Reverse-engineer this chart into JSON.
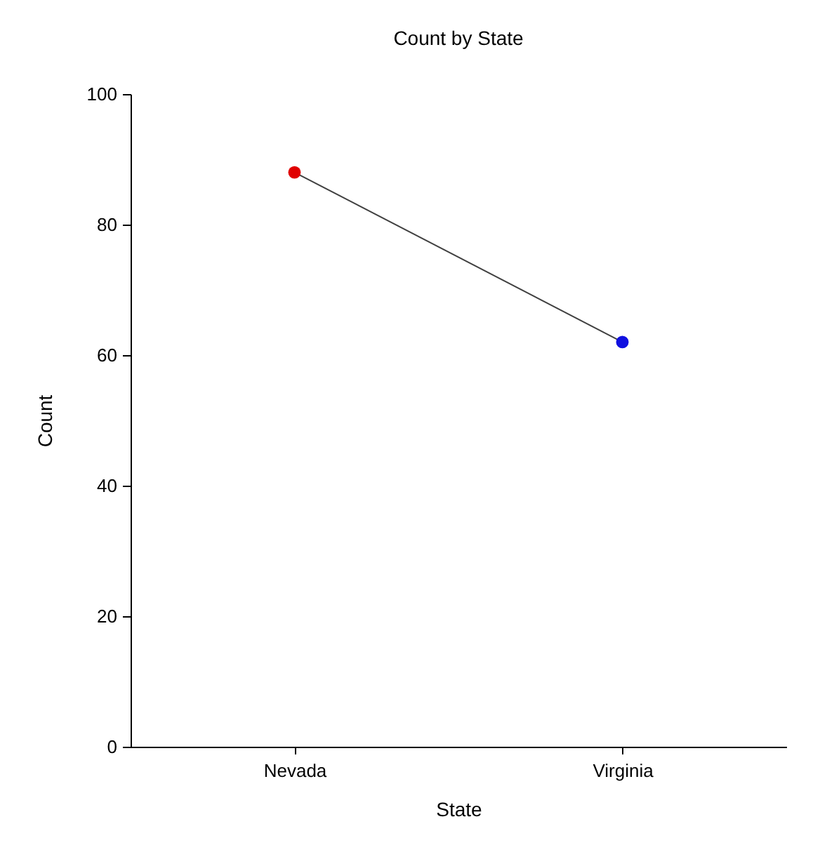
{
  "chart_data": {
    "type": "line",
    "title": "Count by State",
    "xlabel": "State",
    "ylabel": "Count",
    "categories": [
      "Nevada",
      "Virginia"
    ],
    "series": [
      {
        "color": "#404040",
        "values": [
          88,
          62
        ]
      }
    ],
    "colors": [
      "#e00000",
      "#1010e0"
    ],
    "marker": "circle",
    "ylim": [
      0,
      100
    ],
    "yticks": [
      0,
      20,
      40,
      60,
      80,
      100
    ],
    "grid": false
  }
}
